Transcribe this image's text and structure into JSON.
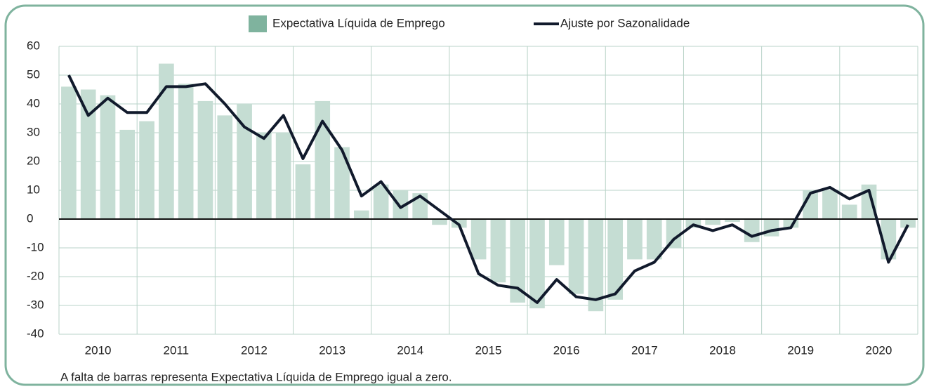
{
  "chart_data": {
    "type": "bar_line",
    "x_labels": [
      "2010",
      "2011",
      "2012",
      "2013",
      "2014",
      "2015",
      "2016",
      "2017",
      "2018",
      "2019",
      "2020"
    ],
    "series": [
      {
        "name": "Expectativa Líquida de Emprego",
        "type": "bar",
        "color": "#c5ddd3",
        "values": [
          46,
          45,
          43,
          31,
          34,
          54,
          47,
          41,
          36,
          40,
          30,
          30,
          19,
          41,
          25,
          3,
          12,
          10,
          9,
          -2,
          -3,
          -14,
          -22,
          -29,
          -31,
          -16,
          -26,
          -32,
          -28,
          -14,
          -14,
          -10,
          -3,
          -2,
          -1,
          -8,
          -6,
          -3,
          10,
          10,
          5,
          12,
          -14,
          -3
        ]
      },
      {
        "name": "Ajuste por Sazonalidade",
        "type": "line",
        "color": "#111a2c",
        "values": [
          50,
          36,
          42,
          37,
          37,
          46,
          46,
          47,
          40,
          32,
          28,
          36,
          21,
          34,
          24,
          8,
          13,
          4,
          8,
          3,
          -2,
          -19,
          -23,
          -24,
          -29,
          -21,
          -27,
          -28,
          -26,
          -18,
          -15,
          -7,
          -2,
          -4,
          -2,
          -6,
          -4,
          -3,
          9,
          11,
          7,
          10,
          -15,
          -2
        ]
      }
    ],
    "ylim": [
      -40,
      60
    ],
    "yticks": [
      -40,
      -30,
      -20,
      -10,
      0,
      10,
      20,
      30,
      40,
      50,
      60
    ],
    "grid": true,
    "note": "A falta de barras representa Expectativa Líquida de Emprego igual a zero."
  }
}
